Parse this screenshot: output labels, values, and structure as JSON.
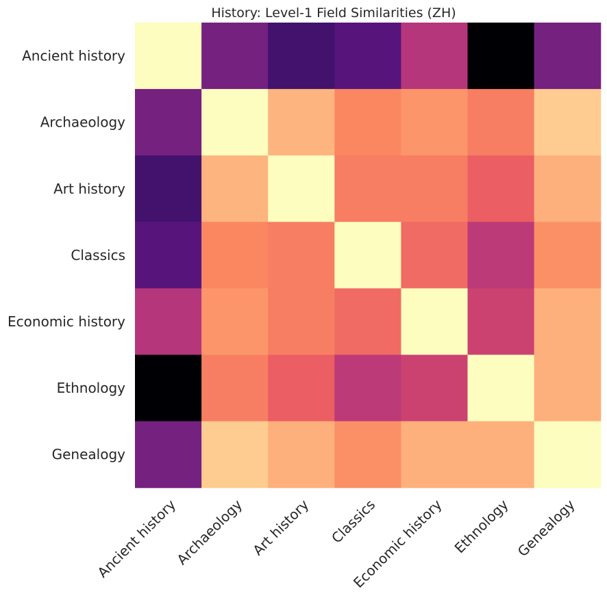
{
  "chart_data": {
    "type": "heatmap",
    "title": "History: Level-1 Field Similarities (ZH)",
    "row_labels": [
      "Ancient history",
      "Archaeology",
      "Art history",
      "Classics",
      "Economic history",
      "Ethnology",
      "Genealogy"
    ],
    "col_labels": [
      "Ancient history",
      "Archaeology",
      "Art history",
      "Classics",
      "Economic history",
      "Ethnology",
      "Genealogy"
    ],
    "colormap": "magma",
    "grid": false,
    "colorbar": false,
    "values": [
      [
        1.0,
        0.35,
        0.22,
        0.27,
        0.5,
        0.0,
        0.35
      ],
      [
        0.35,
        1.0,
        0.85,
        0.75,
        0.78,
        0.73,
        0.9
      ],
      [
        0.22,
        0.85,
        1.0,
        0.73,
        0.73,
        0.66,
        0.84
      ],
      [
        0.27,
        0.75,
        0.73,
        1.0,
        0.69,
        0.52,
        0.77
      ],
      [
        0.5,
        0.78,
        0.73,
        0.69,
        1.0,
        0.56,
        0.84
      ],
      [
        0.0,
        0.73,
        0.66,
        0.52,
        0.56,
        1.0,
        0.84
      ],
      [
        0.35,
        0.9,
        0.84,
        0.77,
        0.84,
        0.84,
        1.0
      ]
    ]
  }
}
